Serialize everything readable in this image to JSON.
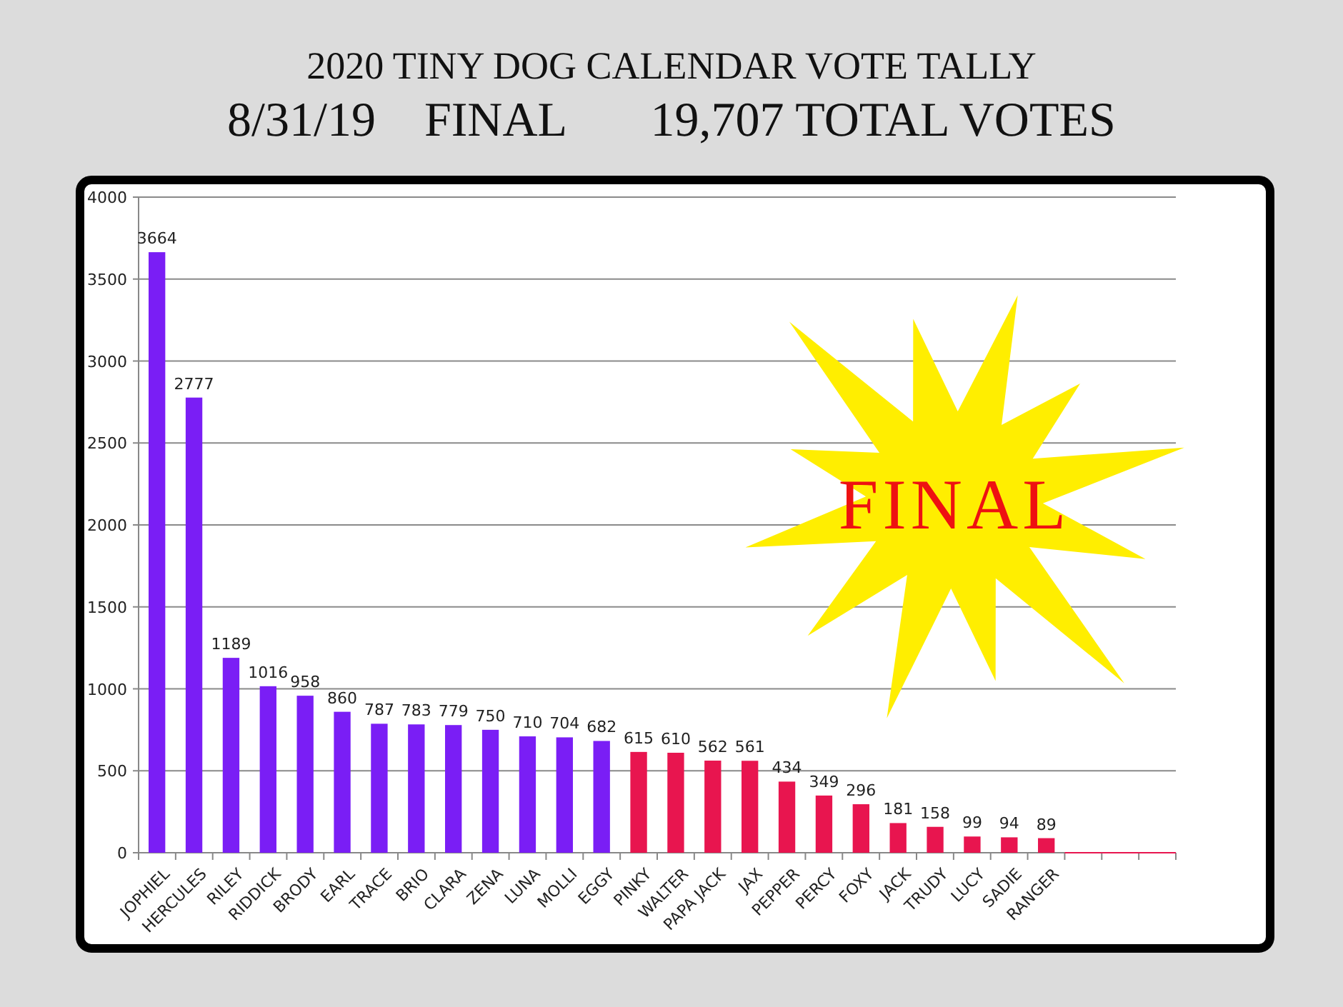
{
  "chart_data": {
    "type": "bar",
    "title": "2020 TINY DOG CALENDAR VOTE TALLY",
    "subtitle": "8/31/19    FINAL       19,707 TOTAL VOTES",
    "categories": [
      "JOPHIEL",
      "HERCULES",
      "RILEY",
      "RIDDICK",
      "BRODY",
      "EARL",
      "TRACE",
      "BRIO",
      "CLARA",
      "ZENA",
      "LUNA",
      "MOLLI",
      "EGGY",
      "PINKY",
      "WALTER",
      "PAPA JACK",
      "JAX",
      "PEPPER",
      "PERCY",
      "FOXY",
      "JACK",
      "TRUDY",
      "LUCY",
      "SADIE",
      "RANGER",
      null,
      null,
      null
    ],
    "values": [
      3664,
      2777,
      1189,
      1016,
      958,
      860,
      787,
      783,
      779,
      750,
      710,
      704,
      682,
      615,
      610,
      562,
      561,
      434,
      349,
      296,
      181,
      158,
      99,
      94,
      89,
      null,
      null,
      null
    ],
    "colors": [
      "#7a1ef5",
      "#7a1ef5",
      "#7a1ef5",
      "#7a1ef5",
      "#7a1ef5",
      "#7a1ef5",
      "#7a1ef5",
      "#7a1ef5",
      "#7a1ef5",
      "#7a1ef5",
      "#7a1ef5",
      "#7a1ef5",
      "#7a1ef5",
      "#e8154f",
      "#e8154f",
      "#e8154f",
      "#e8154f",
      "#e8154f",
      "#e8154f",
      "#e8154f",
      "#e8154f",
      "#e8154f",
      "#e8154f",
      "#e8154f",
      "#e8154f",
      "#e8154f",
      "#e8154f",
      "#e8154f"
    ],
    "ylim": [
      0,
      4000
    ],
    "yticks": [
      0,
      500,
      1000,
      1500,
      2000,
      2500,
      3000,
      3500,
      4000
    ],
    "grid": "y",
    "data_labels": true,
    "annotations": [
      "FINAL"
    ]
  }
}
